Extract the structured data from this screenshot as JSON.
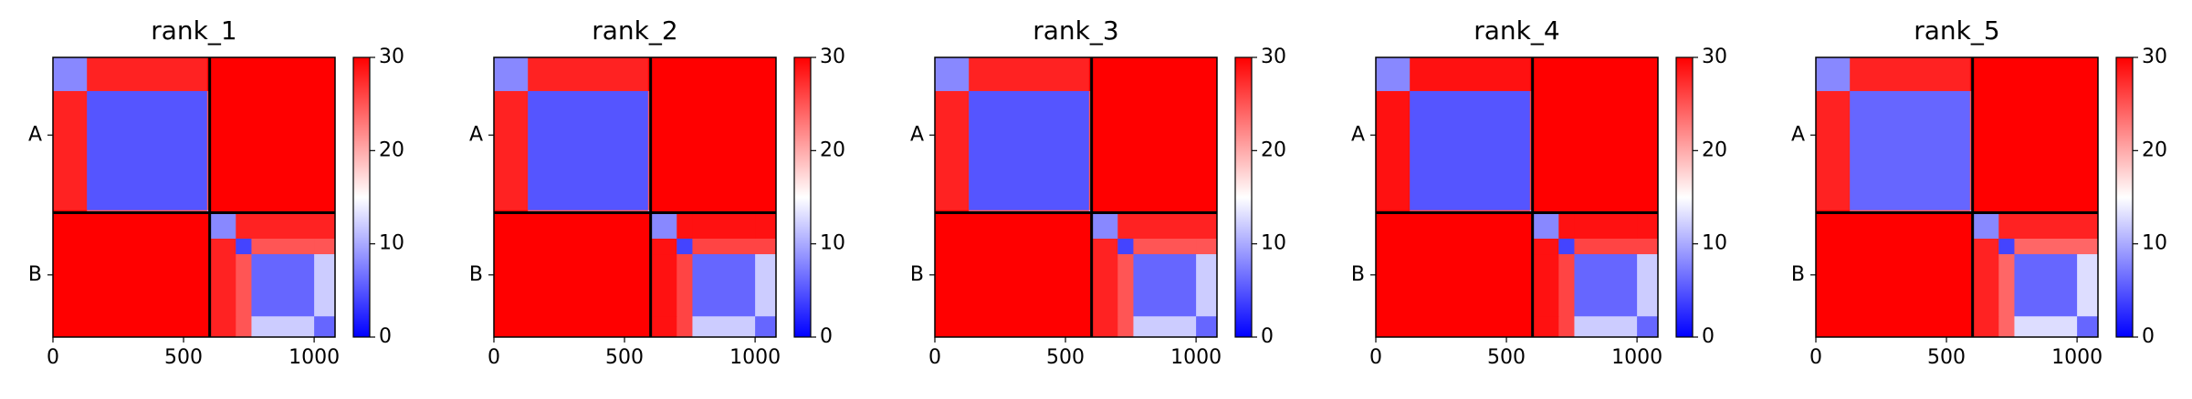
{
  "chart_data": [
    {
      "type": "heatmap",
      "title": "rank_1",
      "xlim": [
        0,
        1080
      ],
      "ylim": [
        1080,
        0
      ],
      "xticks": [
        0,
        500,
        1000
      ],
      "yticks": [
        {
          "value": 300,
          "label": "A"
        },
        {
          "value": 840,
          "label": "B"
        }
      ],
      "chain_breaks": [
        600
      ],
      "edges": [
        0,
        130,
        590,
        600,
        700,
        760,
        1000,
        1080
      ],
      "values": [
        [
          8,
          28,
          30,
          30,
          30,
          30,
          30
        ],
        [
          28,
          5,
          25,
          30,
          30,
          30,
          30
        ],
        [
          30,
          25,
          10,
          30,
          30,
          30,
          30
        ],
        [
          30,
          30,
          30,
          8,
          28,
          28,
          28
        ],
        [
          30,
          30,
          30,
          28,
          4,
          25,
          25
        ],
        [
          30,
          30,
          30,
          28,
          25,
          6,
          12
        ],
        [
          30,
          30,
          30,
          28,
          25,
          12,
          6
        ]
      ],
      "colormap": "bwr",
      "clim": [
        0,
        30
      ],
      "cticks": [
        0,
        10,
        20,
        30
      ]
    },
    {
      "type": "heatmap",
      "title": "rank_2",
      "xlim": [
        0,
        1080
      ],
      "ylim": [
        1080,
        0
      ],
      "xticks": [
        0,
        500,
        1000
      ],
      "yticks": [
        {
          "value": 300,
          "label": "A"
        },
        {
          "value": 840,
          "label": "B"
        }
      ],
      "chain_breaks": [
        600
      ],
      "edges": [
        0,
        130,
        590,
        600,
        700,
        760,
        1000,
        1080
      ],
      "values": [
        [
          8,
          28,
          30,
          30,
          30,
          30,
          30
        ],
        [
          28,
          5,
          25,
          30,
          30,
          30,
          30
        ],
        [
          30,
          25,
          10,
          30,
          30,
          30,
          30
        ],
        [
          30,
          30,
          30,
          8,
          29,
          29,
          29
        ],
        [
          30,
          30,
          30,
          29,
          4,
          26,
          26
        ],
        [
          30,
          30,
          30,
          29,
          26,
          6,
          12
        ],
        [
          30,
          30,
          30,
          29,
          26,
          12,
          6
        ]
      ],
      "colormap": "bwr",
      "clim": [
        0,
        30
      ],
      "cticks": [
        0,
        10,
        20,
        30
      ]
    },
    {
      "type": "heatmap",
      "title": "rank_3",
      "xlim": [
        0,
        1080
      ],
      "ylim": [
        1080,
        0
      ],
      "xticks": [
        0,
        500,
        1000
      ],
      "yticks": [
        {
          "value": 300,
          "label": "A"
        },
        {
          "value": 840,
          "label": "B"
        }
      ],
      "chain_breaks": [
        600
      ],
      "edges": [
        0,
        130,
        590,
        600,
        700,
        760,
        1000,
        1080
      ],
      "values": [
        [
          8,
          28,
          30,
          30,
          30,
          30,
          30
        ],
        [
          28,
          5,
          25,
          30,
          30,
          30,
          30
        ],
        [
          30,
          25,
          10,
          30,
          30,
          30,
          30
        ],
        [
          30,
          30,
          30,
          8,
          28,
          28,
          28
        ],
        [
          30,
          30,
          30,
          28,
          4,
          25,
          25
        ],
        [
          30,
          30,
          30,
          28,
          25,
          6,
          12
        ],
        [
          30,
          30,
          30,
          28,
          25,
          12,
          6
        ]
      ],
      "colormap": "bwr",
      "clim": [
        0,
        30
      ],
      "cticks": [
        0,
        10,
        20,
        30
      ]
    },
    {
      "type": "heatmap",
      "title": "rank_4",
      "xlim": [
        0,
        1080
      ],
      "ylim": [
        1080,
        0
      ],
      "xticks": [
        0,
        500,
        1000
      ],
      "yticks": [
        {
          "value": 300,
          "label": "A"
        },
        {
          "value": 840,
          "label": "B"
        }
      ],
      "chain_breaks": [
        600
      ],
      "edges": [
        0,
        130,
        590,
        600,
        700,
        760,
        1000,
        1080
      ],
      "values": [
        [
          8,
          29,
          30,
          30,
          30,
          30,
          30
        ],
        [
          29,
          5,
          26,
          30,
          30,
          30,
          30
        ],
        [
          30,
          26,
          10,
          30,
          30,
          30,
          30
        ],
        [
          30,
          30,
          30,
          8,
          29,
          29,
          29
        ],
        [
          30,
          30,
          30,
          29,
          4,
          26,
          26
        ],
        [
          30,
          30,
          30,
          29,
          26,
          6,
          12
        ],
        [
          30,
          30,
          30,
          29,
          26,
          12,
          6
        ]
      ],
      "colormap": "bwr",
      "clim": [
        0,
        30
      ],
      "cticks": [
        0,
        10,
        20,
        30
      ]
    },
    {
      "type": "heatmap",
      "title": "rank_5",
      "xlim": [
        0,
        1080
      ],
      "ylim": [
        1080,
        0
      ],
      "xticks": [
        0,
        500,
        1000
      ],
      "yticks": [
        {
          "value": 300,
          "label": "A"
        },
        {
          "value": 840,
          "label": "B"
        }
      ],
      "chain_breaks": [
        600
      ],
      "edges": [
        0,
        130,
        590,
        600,
        700,
        760,
        1000,
        1080
      ],
      "values": [
        [
          8,
          28,
          30,
          30,
          30,
          30,
          30
        ],
        [
          28,
          6,
          25,
          30,
          30,
          30,
          30
        ],
        [
          30,
          25,
          10,
          30,
          30,
          30,
          30
        ],
        [
          30,
          30,
          30,
          8,
          28,
          28,
          28
        ],
        [
          30,
          30,
          30,
          28,
          4,
          24,
          24
        ],
        [
          30,
          30,
          30,
          28,
          24,
          6,
          13
        ],
        [
          30,
          30,
          30,
          28,
          24,
          13,
          6
        ]
      ],
      "colormap": "bwr",
      "clim": [
        0,
        30
      ],
      "cticks": [
        0,
        10,
        20,
        30
      ]
    }
  ]
}
